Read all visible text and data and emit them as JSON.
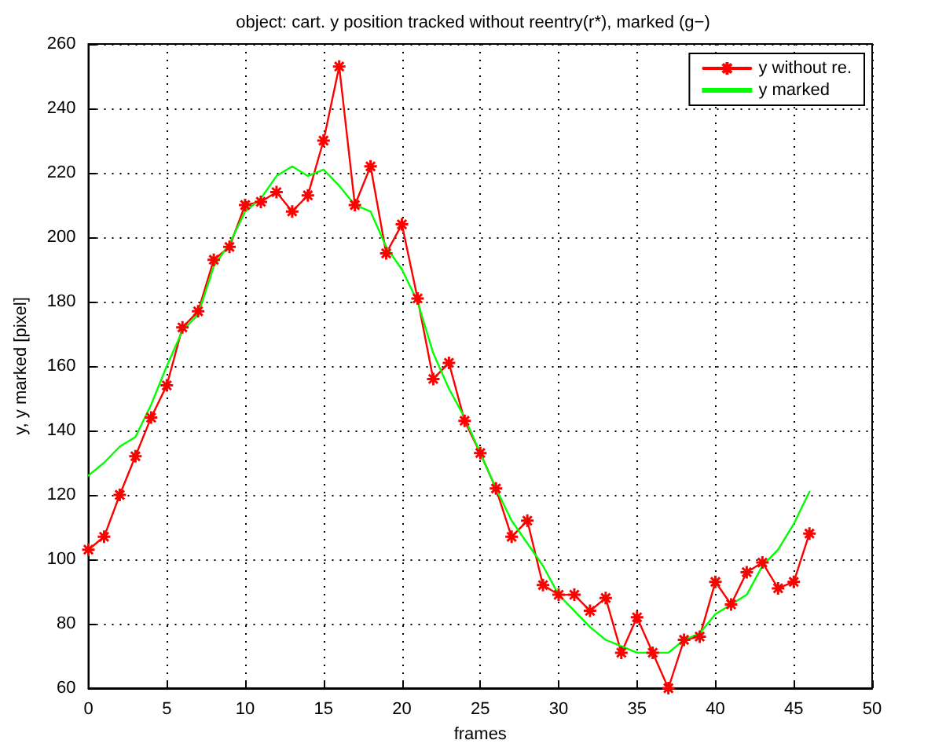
{
  "chart_data": {
    "type": "line",
    "title": "object: cart. y position tracked without reentry(r*), marked (g−)",
    "xlabel": "frames",
    "ylabel": "y, y marked [pixel]",
    "x": [
      0,
      1,
      2,
      3,
      4,
      5,
      6,
      7,
      8,
      9,
      10,
      11,
      12,
      13,
      14,
      15,
      16,
      17,
      18,
      19,
      20,
      21,
      22,
      23,
      24,
      25,
      26,
      27,
      28,
      29,
      30,
      31,
      32,
      33,
      34,
      35,
      36,
      37,
      38,
      39,
      40,
      41,
      42,
      43,
      44,
      45,
      46
    ],
    "series": [
      {
        "name": "y without re.",
        "color": "#ff0000",
        "marker": "cross",
        "values": [
          103,
          107,
          120,
          132,
          144,
          154,
          172,
          177,
          193,
          197,
          210,
          211,
          214,
          208,
          213,
          230,
          253,
          210,
          222,
          195,
          204,
          181,
          156,
          161,
          143,
          133,
          122,
          107,
          112,
          92,
          89,
          89,
          84,
          88,
          71,
          82,
          71,
          60,
          75,
          76,
          93,
          86,
          96,
          99,
          91,
          93,
          108
        ]
      },
      {
        "name": "y marked",
        "color": "#00ff00",
        "marker": "none",
        "values": [
          126,
          130,
          135,
          138,
          148,
          160,
          171,
          176,
          191,
          198,
          208,
          212,
          219,
          222,
          219,
          221,
          216,
          210,
          208,
          197,
          190,
          180,
          164,
          153,
          144,
          133,
          122,
          112,
          105,
          98,
          89,
          84,
          79,
          75,
          73,
          71,
          71,
          71,
          75,
          77,
          83,
          86,
          89,
          98,
          103,
          111,
          121
        ]
      }
    ],
    "xlim": [
      0,
      50
    ],
    "xticks": [
      0,
      5,
      10,
      15,
      20,
      25,
      30,
      35,
      40,
      45,
      50
    ],
    "ylim": [
      60,
      260
    ],
    "yticks": [
      60,
      80,
      100,
      120,
      140,
      160,
      180,
      200,
      220,
      240,
      260
    ],
    "grid": true,
    "legend": "top right",
    "line_style": "solid"
  }
}
